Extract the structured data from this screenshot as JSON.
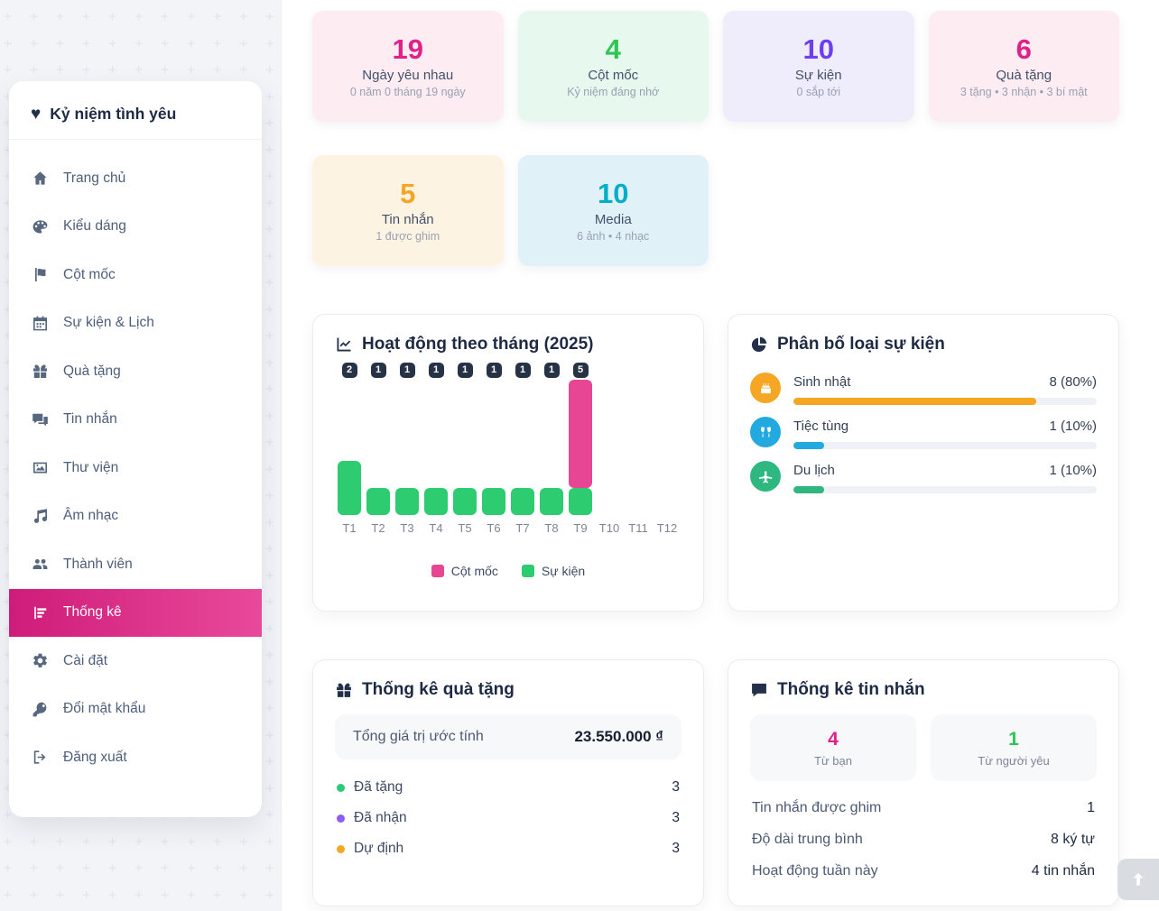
{
  "app": {
    "title": "Kỷ niệm tình yêu"
  },
  "sidebar": {
    "items": [
      {
        "label": "Trang chủ",
        "icon": "home"
      },
      {
        "label": "Kiểu dáng",
        "icon": "palette"
      },
      {
        "label": "Cột mốc",
        "icon": "flag"
      },
      {
        "label": "Sự kiện & Lịch",
        "icon": "calendar"
      },
      {
        "label": "Quà tặng",
        "icon": "gift"
      },
      {
        "label": "Tin nhắn",
        "icon": "comments"
      },
      {
        "label": "Thư viện",
        "icon": "images"
      },
      {
        "label": "Âm nhạc",
        "icon": "music"
      },
      {
        "label": "Thành viên",
        "icon": "users"
      },
      {
        "label": "Thống kê",
        "icon": "chart",
        "active": true
      },
      {
        "label": "Cài đặt",
        "icon": "gear"
      },
      {
        "label": "Đổi mật khẩu",
        "icon": "key"
      },
      {
        "label": "Đăng xuất",
        "icon": "signout"
      }
    ]
  },
  "stat_cards": [
    {
      "value": "19",
      "label": "Ngày yêu nhau",
      "sub": "0 năm 0 tháng 19 ngày",
      "color": "#e0218a",
      "bg": "#fdecf2"
    },
    {
      "value": "4",
      "label": "Cột mốc",
      "sub": "Kỷ niệm đáng nhớ",
      "color": "#2dc653",
      "bg": "#e7f8ee"
    },
    {
      "value": "10",
      "label": "Sự kiện",
      "sub": "0 sắp tới",
      "color": "#6d3ef2",
      "bg": "#efecfb"
    },
    {
      "value": "6",
      "label": "Quà tặng",
      "sub": "3 tặng • 3 nhận • 3 bí mật",
      "color": "#e0218a",
      "bg": "#fdecf2"
    },
    {
      "value": "5",
      "label": "Tin nhắn",
      "sub": "1 được ghim",
      "color": "#f5a623",
      "bg": "#fdf3e2"
    },
    {
      "value": "10",
      "label": "Media",
      "sub": "6 ảnh • 4 nhạc",
      "color": "#00aec9",
      "bg": "#e0f2f7"
    }
  ],
  "chart_data": [
    {
      "type": "bar",
      "stacked": true,
      "title": "Hoạt động theo tháng (2025)",
      "categories": [
        "T1",
        "T2",
        "T3",
        "T4",
        "T5",
        "T6",
        "T7",
        "T8",
        "T9",
        "T10",
        "T11",
        "T12"
      ],
      "series": [
        {
          "name": "Cột mốc",
          "color": "#e74694",
          "values": [
            0,
            0,
            0,
            0,
            0,
            0,
            0,
            0,
            4,
            0,
            0,
            0
          ]
        },
        {
          "name": "Sự kiện",
          "color": "#2ecc71",
          "values": [
            2,
            1,
            1,
            1,
            1,
            1,
            1,
            1,
            1,
            0,
            0,
            0
          ]
        }
      ],
      "bar_total_labels": [
        2,
        1,
        1,
        1,
        1,
        1,
        1,
        1,
        5,
        null,
        null,
        null
      ],
      "ylim": [
        0,
        5
      ],
      "grid": false,
      "legend_position": "bottom"
    },
    {
      "type": "bar",
      "orientation": "horizontal",
      "title": "Phân bố loại sự kiện",
      "categories": [
        "Sinh nhật",
        "Tiệc tùng",
        "Du lịch"
      ],
      "values": [
        8,
        1,
        1
      ],
      "percents": [
        80,
        10,
        10
      ],
      "value_labels": [
        "8 (80%)",
        "1 (10%)",
        "1 (10%)"
      ],
      "colors": [
        "#f5a623",
        "#21a9e0",
        "#2eb87f"
      ],
      "icons": [
        "cake-icon",
        "cheers-icon",
        "plane-icon"
      ]
    }
  ],
  "gift_panel": {
    "title": "Thống kê quà tặng",
    "total_label": "Tổng giá trị ước tính",
    "total_value": "23.550.000 ₫",
    "items": [
      {
        "label": "Đã tặng",
        "value": "3",
        "dot": "#2dc97a"
      },
      {
        "label": "Đã nhận",
        "value": "3",
        "dot": "#8b5cf6"
      },
      {
        "label": "Dự định",
        "value": "3",
        "dot": "#f5a623"
      }
    ]
  },
  "message_panel": {
    "title": "Thống kê tin nhắn",
    "cards": [
      {
        "value": "4",
        "label": "Từ bạn",
        "color": "#e0218a"
      },
      {
        "value": "1",
        "label": "Từ người yêu",
        "color": "#2dc653"
      }
    ],
    "rows": [
      {
        "label": "Tin nhắn được ghim",
        "value": "1"
      },
      {
        "label": "Độ dài trung bình",
        "value": "8 ký tự"
      },
      {
        "label": "Hoạt động tuần này",
        "value": "4 tin nhắn"
      }
    ]
  }
}
